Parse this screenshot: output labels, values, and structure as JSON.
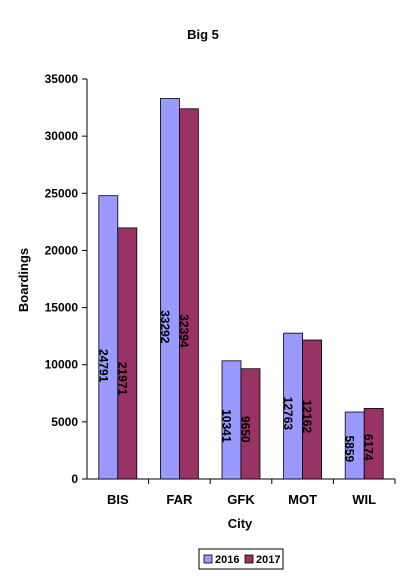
{
  "chart_data": {
    "type": "bar",
    "title": "Big 5",
    "xlabel": "City",
    "ylabel": "Boardings",
    "categories": [
      "BIS",
      "FAR",
      "GFK",
      "MOT",
      "WIL"
    ],
    "series": [
      {
        "name": "2016",
        "values": [
          24791,
          33292,
          10341,
          12763,
          5859
        ],
        "color": "#9999ff"
      },
      {
        "name": "2017",
        "values": [
          21971,
          32394,
          9650,
          12162,
          6174
        ],
        "color": "#993366"
      }
    ],
    "ylim": [
      0,
      35000
    ],
    "yticks": [
      "0",
      "5000",
      "10000",
      "15000",
      "20000",
      "25000",
      "30000",
      "35000"
    ],
    "grid": false,
    "legend": "bottom",
    "data_labels": "inside-bars-rotated"
  }
}
